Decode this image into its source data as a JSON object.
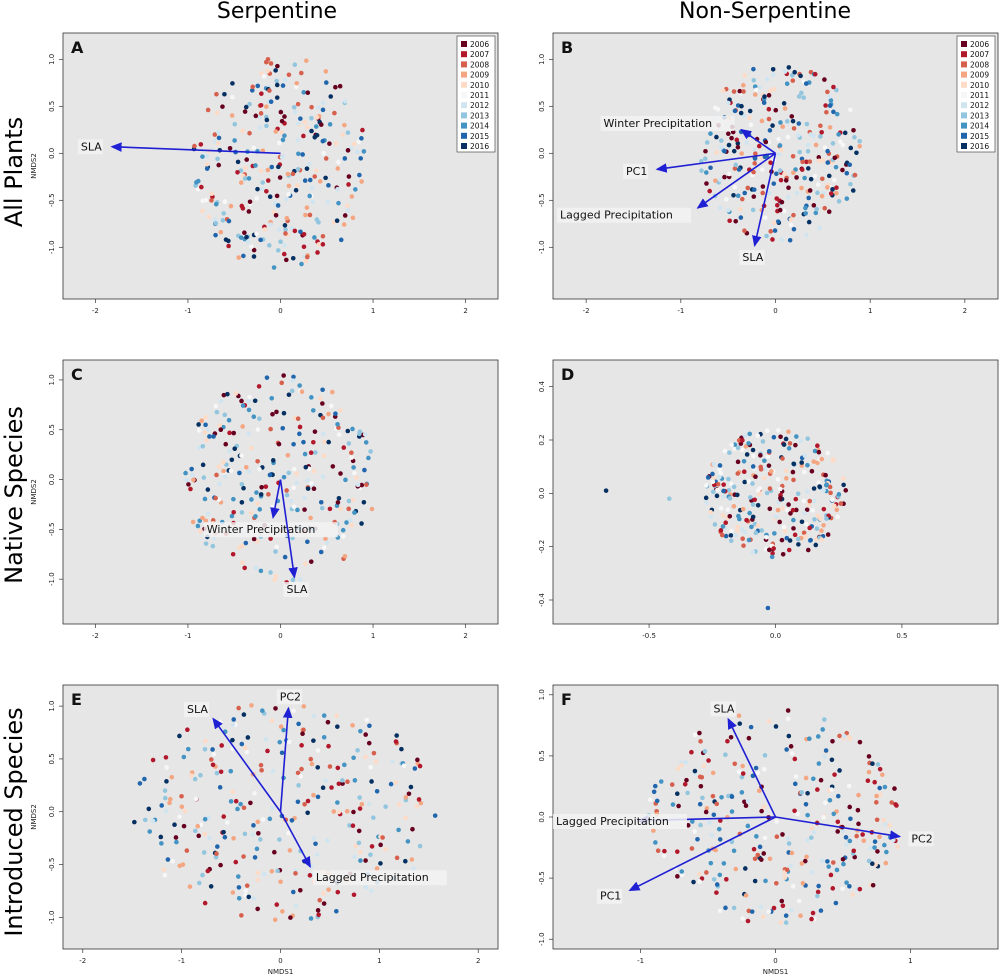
{
  "column_titles": [
    "Serpentine",
    "Non-Serpentine"
  ],
  "row_titles": [
    "All Plants",
    "Native Species",
    "Introduced Species"
  ],
  "legend": {
    "years": [
      "2006",
      "2007",
      "2008",
      "2009",
      "2010",
      "2011",
      "2012",
      "2013",
      "2014",
      "2015",
      "2016"
    ],
    "colors": [
      "#67001f",
      "#b2182b",
      "#d6604d",
      "#f4a582",
      "#fddbc7",
      "#f7f7f7",
      "#d1e5f0",
      "#92c5de",
      "#4393c3",
      "#2166ac",
      "#053061"
    ]
  },
  "colors": {
    "panel_bg": "#e6e6e6",
    "vector": "#1f1fd4",
    "label_bg": "#f2f2f2"
  },
  "chart_data": [
    {
      "type": "scatter",
      "panel": "A",
      "col": 0,
      "row": 0,
      "title": "",
      "xlabel": "",
      "ylabel": "NMDS2",
      "xlim": [
        -2.35,
        2.35
      ],
      "ylim": [
        -1.55,
        1.28
      ],
      "xticks": [
        "-2",
        "-1",
        "0",
        "1",
        "2"
      ],
      "yticks": [
        "-1.0",
        "-0.5",
        "0.0",
        "0.5",
        "1.0"
      ],
      "legend": true,
      "scatter": {
        "n": 320,
        "cx": 0.0,
        "cy": -0.1,
        "rx": 0.95,
        "ry": 1.15,
        "seed": 11
      },
      "vectors": [
        {
          "label": "SLA",
          "x": -1.82,
          "y": 0.07
        }
      ]
    },
    {
      "type": "scatter",
      "panel": "B",
      "col": 1,
      "row": 0,
      "title": "",
      "xlabel": "",
      "ylabel": "",
      "xlim": [
        -2.35,
        2.35
      ],
      "ylim": [
        -1.55,
        1.28
      ],
      "xticks": [
        "-2",
        "-1",
        "0",
        "1",
        "2"
      ],
      "yticks": [
        "-1.0",
        "-0.5",
        "0.0",
        "0.5",
        "1.0"
      ],
      "legend": true,
      "scatter": {
        "n": 320,
        "cx": 0.05,
        "cy": 0.0,
        "rx": 0.85,
        "ry": 0.95,
        "seed": 23
      },
      "vectors": [
        {
          "label": "Winter Precipitation",
          "x": -0.36,
          "y": 0.25
        },
        {
          "label": "PC1",
          "x": -1.25,
          "y": -0.17
        },
        {
          "label": "Lagged Precipitation",
          "x": -0.82,
          "y": -0.58
        },
        {
          "label": "SLA",
          "x": -0.22,
          "y": -0.98
        }
      ]
    },
    {
      "type": "scatter",
      "panel": "C",
      "col": 0,
      "row": 1,
      "title": "",
      "xlabel": "",
      "ylabel": "NMDS2",
      "xlim": [
        -2.35,
        2.35
      ],
      "ylim": [
        -1.45,
        1.2
      ],
      "xticks": [
        "-2",
        "-1",
        "0",
        "1",
        "2"
      ],
      "yticks": [
        "-1.0",
        "-0.5",
        "0.0",
        "0.5",
        "1.0"
      ],
      "legend": false,
      "scatter": {
        "n": 300,
        "cx": 0.0,
        "cy": 0.0,
        "rx": 1.05,
        "ry": 1.05,
        "seed": 37
      },
      "vectors": [
        {
          "label": "Winter Precipitation",
          "x": -0.08,
          "y": -0.38
        },
        {
          "label": "SLA",
          "x": 0.15,
          "y": -0.98
        }
      ]
    },
    {
      "type": "scatter",
      "panel": "D",
      "col": 1,
      "row": 1,
      "title": "",
      "xlabel": "",
      "ylabel": "",
      "xlim": [
        -0.88,
        0.88
      ],
      "ylim": [
        -0.49,
        0.5
      ],
      "xticks": [
        "-0.5",
        "0.0",
        "0.5"
      ],
      "yticks": [
        "-0.4",
        "-0.2",
        "0.0",
        "0.2",
        "0.4"
      ],
      "legend": false,
      "scatter": {
        "n": 300,
        "cx": 0.0,
        "cy": 0.0,
        "rx": 0.28,
        "ry": 0.24,
        "seed": 53
      },
      "vectors": []
    },
    {
      "type": "scatter",
      "panel": "E",
      "col": 0,
      "row": 2,
      "title": "",
      "xlabel": "NMDS1",
      "ylabel": "NMDS2",
      "xlim": [
        -2.2,
        2.2
      ],
      "ylim": [
        -1.3,
        1.2
      ],
      "xticks": [
        "-2",
        "-1",
        "0",
        "1",
        "2"
      ],
      "yticks": [
        "-1.0",
        "-0.5",
        "0.0",
        "0.5",
        "1.0"
      ],
      "legend": false,
      "scatter": {
        "n": 320,
        "cx": 0.05,
        "cy": 0.0,
        "rx": 1.55,
        "ry": 1.05,
        "seed": 71
      },
      "vectors": [
        {
          "label": "SLA",
          "x": -0.68,
          "y": 0.88
        },
        {
          "label": "PC2",
          "x": 0.08,
          "y": 0.98
        },
        {
          "label": "Lagged Precipitation",
          "x": 0.3,
          "y": -0.52
        }
      ]
    },
    {
      "type": "scatter",
      "panel": "F",
      "col": 1,
      "row": 2,
      "title": "",
      "xlabel": "NMDS1",
      "ylabel": "",
      "xlim": [
        -1.65,
        1.65
      ],
      "ylim": [
        -1.08,
        1.08
      ],
      "xticks": [
        "-1",
        "0",
        "1"
      ],
      "yticks": [
        "-1.0",
        "-0.5",
        "0.0",
        "0.5",
        "1.0"
      ],
      "legend": false,
      "scatter": {
        "n": 320,
        "cx": 0.0,
        "cy": 0.0,
        "rx": 0.95,
        "ry": 0.88,
        "seed": 89
      },
      "vectors": [
        {
          "label": "SLA",
          "x": -0.35,
          "y": 0.8
        },
        {
          "label": "Lagged Precipitation",
          "x": -1.02,
          "y": -0.03
        },
        {
          "label": "PC2",
          "x": 0.92,
          "y": -0.16
        },
        {
          "label": "PC1",
          "x": -1.08,
          "y": -0.6
        }
      ]
    }
  ]
}
